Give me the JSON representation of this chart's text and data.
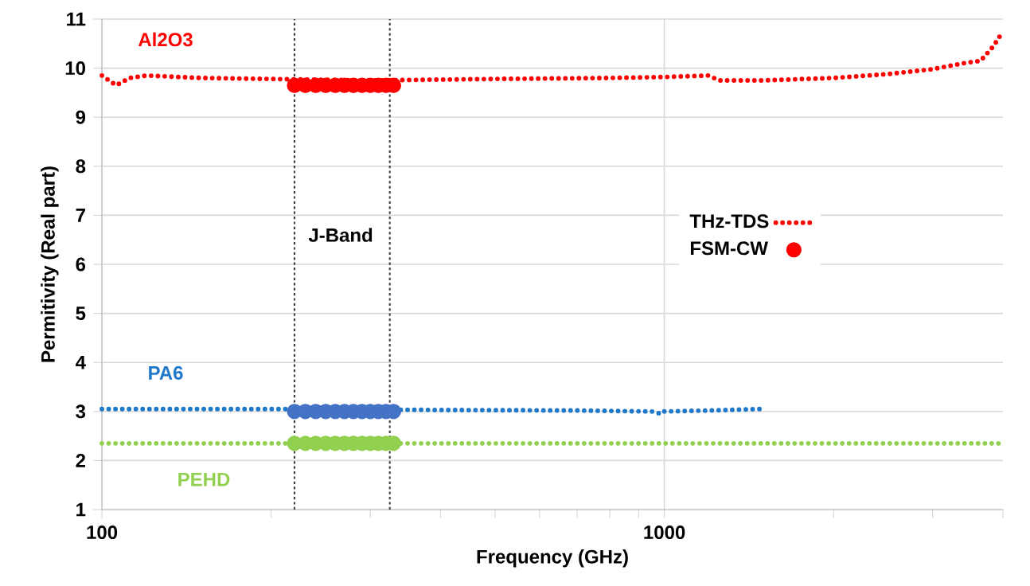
{
  "chart_data": {
    "type": "line",
    "xlabel": "Frequency (GHz)",
    "ylabel": "Permitivity (Real part)",
    "log": "x",
    "grid": true,
    "legend": "right",
    "xlim": [
      100,
      4000
    ],
    "ylim": [
      1,
      11
    ],
    "xticks": [
      100,
      1000,
      {
        "value": 200,
        "label": null
      },
      {
        "value": 300,
        "label": null
      },
      {
        "value": 400,
        "label": null
      },
      {
        "value": 500,
        "label": null
      },
      {
        "value": 600,
        "label": null
      },
      {
        "value": 700,
        "label": null
      },
      {
        "value": 800,
        "label": null
      },
      {
        "value": 900,
        "label": null
      },
      {
        "value": 2000,
        "label": null
      },
      {
        "value": 3000,
        "label": null
      },
      {
        "value": 4000,
        "label": null
      }
    ],
    "yticks": [
      1,
      2,
      3,
      4,
      5,
      6,
      7,
      8,
      9,
      10,
      11
    ],
    "ref_lines": [
      {
        "axis": "x",
        "value": 220,
        "label": "J-Band",
        "color": "#404040",
        "line_style": "dotted"
      },
      {
        "axis": "x",
        "value": 325,
        "color": "#404040",
        "line_style": "dotted"
      }
    ],
    "annotations": [
      "Al2O3",
      "PA6",
      "PEHD"
    ],
    "series": [
      {
        "name": "THz-TDS",
        "line_style": "dotted",
        "color": "#ff0000",
        "x": [
          100,
          106,
          112,
          120,
          150,
          200,
          300,
          500,
          800,
          1000,
          1200,
          1250,
          1500,
          2000,
          2500,
          3000,
          3400,
          3650,
          3850,
          4000
        ],
        "values": [
          9.85,
          9.65,
          9.8,
          9.85,
          9.8,
          9.78,
          9.75,
          9.78,
          9.8,
          9.82,
          9.85,
          9.75,
          9.75,
          9.8,
          9.88,
          9.98,
          10.1,
          10.15,
          10.45,
          10.75
        ]
      },
      {
        "line_style": "dotted",
        "color": "#1f78c8",
        "x": [
          100,
          200,
          400,
          700,
          950,
          990,
          1000,
          1200,
          1480
        ],
        "values": [
          3.05,
          3.05,
          3.03,
          3.02,
          3.0,
          2.95,
          3.0,
          3.02,
          3.05
        ]
      },
      {
        "line_style": "dotted",
        "color": "#92d050",
        "x": [
          100,
          300,
          1000,
          2000,
          4000
        ],
        "values": [
          2.35,
          2.35,
          2.35,
          2.35,
          2.35
        ]
      },
      {
        "name": "FSM-CW",
        "type": "scatter",
        "marker": "circle",
        "color": "#ff0000",
        "x": [
          220,
          230,
          240,
          250,
          260,
          270,
          280,
          290,
          300,
          310,
          320,
          330
        ],
        "values": [
          9.65,
          9.65,
          9.65,
          9.65,
          9.65,
          9.65,
          9.65,
          9.65,
          9.65,
          9.65,
          9.65,
          9.65
        ]
      },
      {
        "type": "scatter",
        "marker": "circle",
        "color": "#4472c4",
        "x": [
          220,
          230,
          240,
          250,
          260,
          270,
          280,
          290,
          300,
          310,
          320,
          330
        ],
        "values": [
          3.0,
          3.0,
          3.0,
          3.0,
          3.0,
          3.0,
          3.0,
          3.0,
          3.0,
          3.0,
          3.0,
          3.0
        ]
      },
      {
        "type": "scatter",
        "marker": "circle",
        "color": "#92d050",
        "x": [
          220,
          230,
          240,
          250,
          260,
          270,
          280,
          290,
          300,
          310,
          320,
          330
        ],
        "values": [
          2.35,
          2.35,
          2.35,
          2.35,
          2.35,
          2.35,
          2.35,
          2.35,
          2.35,
          2.35,
          2.35,
          2.35
        ]
      }
    ]
  }
}
